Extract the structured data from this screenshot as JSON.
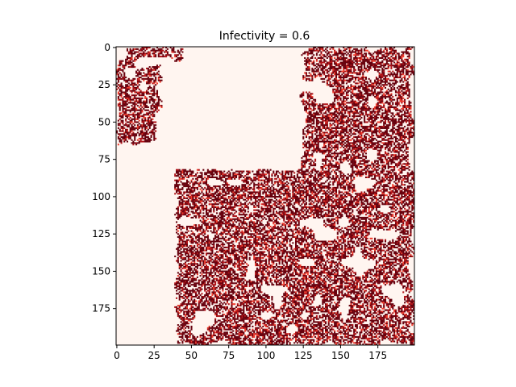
{
  "chart_data": {
    "type": "heatmap",
    "title": "Infectivity = 0.6",
    "xlabel": "",
    "ylabel": "",
    "grid_size": [
      200,
      200
    ],
    "xlim": [
      -0.5,
      199.5
    ],
    "ylim": [
      199.5,
      -0.5
    ],
    "x_ticks": [
      0,
      25,
      50,
      75,
      100,
      125,
      150,
      175
    ],
    "y_ticks": [
      0,
      25,
      50,
      75,
      100,
      125,
      150,
      175
    ],
    "colormap": "Reds",
    "colors": {
      "empty": "#fff5f0",
      "infected": "#67000d",
      "infected_alt": "#b01318",
      "speckle": "#ef3b2c"
    },
    "grid": false,
    "infected_regions": [
      {
        "label": "top-left strip",
        "x": [
          5,
          45
        ],
        "y": [
          0,
          8
        ]
      },
      {
        "label": "left edge cluster",
        "x": [
          0,
          28
        ],
        "y": [
          8,
          65
        ]
      },
      {
        "label": "top-right block",
        "x": [
          125,
          199
        ],
        "y": [
          0,
          85
        ]
      },
      {
        "label": "main lower-right body",
        "x": [
          40,
          199
        ],
        "y": [
          82,
          199
        ]
      }
    ]
  }
}
